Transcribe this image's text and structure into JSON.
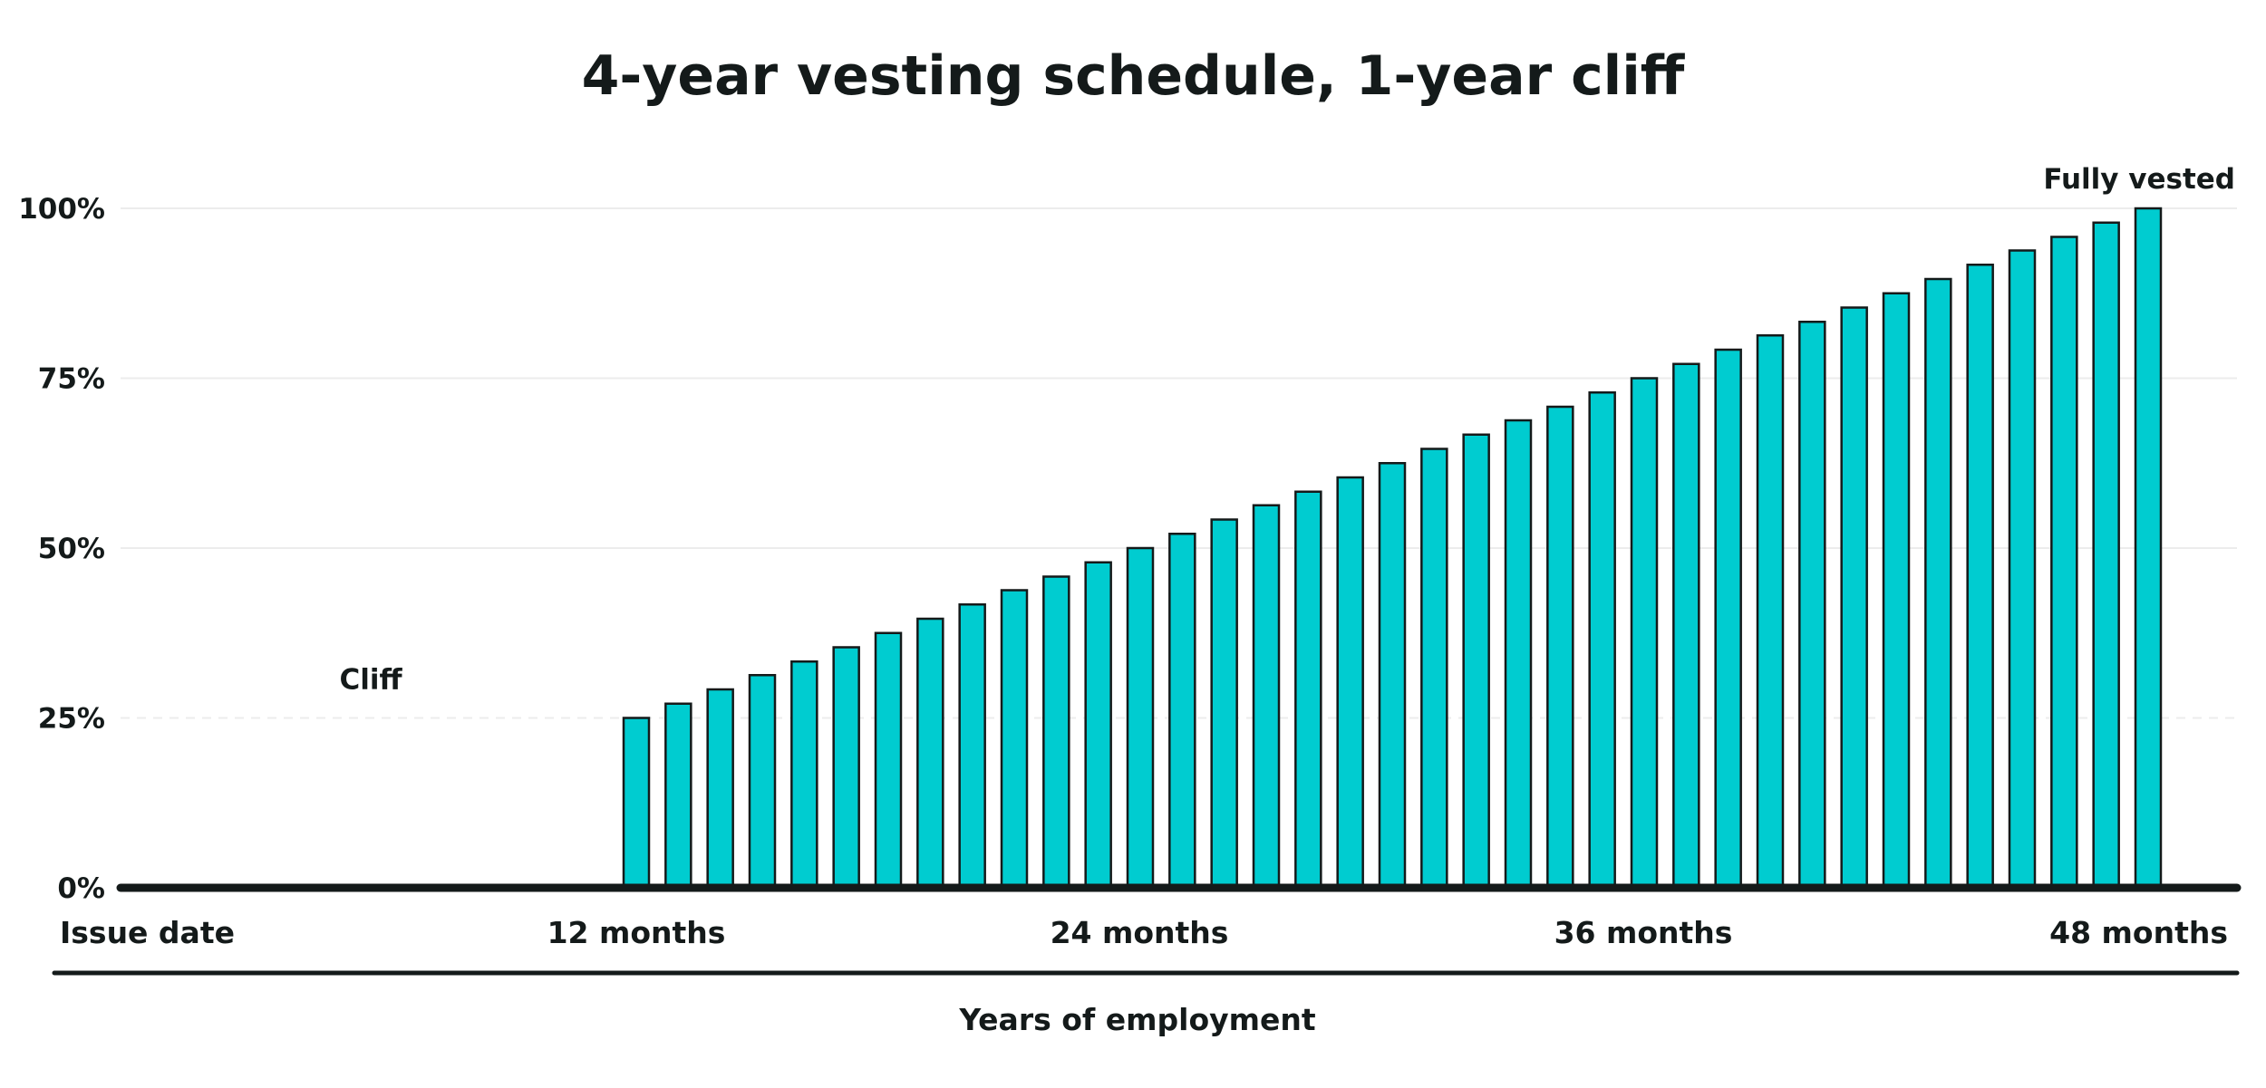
{
  "chart_data": {
    "type": "bar",
    "title": "4-year vesting schedule, 1-year cliff",
    "xlabel": "Years of employment",
    "ylabel": "",
    "ylim": [
      0,
      100
    ],
    "y_ticks": [
      {
        "value": 0,
        "label": "0%"
      },
      {
        "value": 25,
        "label": "25%"
      },
      {
        "value": 50,
        "label": "50%"
      },
      {
        "value": 75,
        "label": "75%"
      },
      {
        "value": 100,
        "label": "100%"
      }
    ],
    "x_range": [
      0,
      48
    ],
    "x_ticks": [
      {
        "month": 0,
        "label": "Issue date"
      },
      {
        "month": 12,
        "label": "12 months"
      },
      {
        "month": 24,
        "label": "24 months"
      },
      {
        "month": 36,
        "label": "36 months"
      },
      {
        "month": 48,
        "label": "48 months"
      }
    ],
    "months": [
      12,
      13,
      14,
      15,
      16,
      17,
      18,
      19,
      20,
      21,
      22,
      23,
      24,
      25,
      26,
      27,
      28,
      29,
      30,
      31,
      32,
      33,
      34,
      35,
      36,
      37,
      38,
      39,
      40,
      41,
      42,
      43,
      44,
      45,
      46,
      47,
      48
    ],
    "values": [
      25,
      27.1,
      29.2,
      31.3,
      33.3,
      35.4,
      37.5,
      39.6,
      41.7,
      43.8,
      45.8,
      47.9,
      50,
      52.1,
      54.2,
      56.3,
      58.3,
      60.4,
      62.5,
      64.6,
      66.7,
      68.8,
      70.8,
      72.9,
      75,
      77.1,
      79.2,
      81.3,
      83.3,
      85.4,
      87.5,
      89.6,
      91.7,
      93.8,
      95.8,
      97.9,
      100
    ],
    "bar_color": "#00ccd0",
    "annotations": [
      {
        "text": "Cliff",
        "month": 6,
        "value": 25
      },
      {
        "text": "Fully vested",
        "month": 48,
        "value": 100
      }
    ],
    "grid": true
  }
}
